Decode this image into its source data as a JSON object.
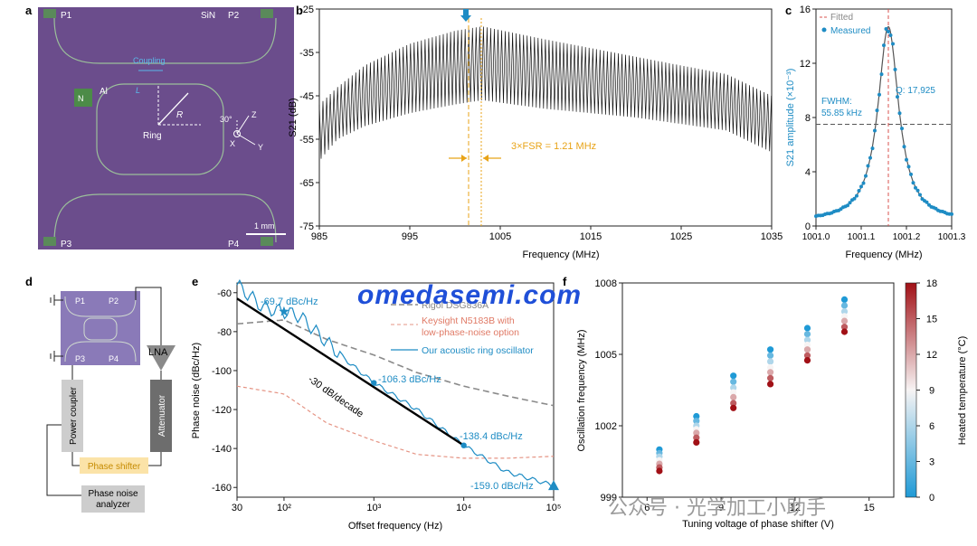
{
  "colors": {
    "purple_chip": "#6b4d8c",
    "ring_line": "#9bbf9a",
    "blue": "#1e8cc4",
    "orange": "#e8a317",
    "red": "#d9534f",
    "gray": "#8a8a8a"
  },
  "panel_labels": {
    "a": "a",
    "b": "b",
    "c": "c",
    "d": "d",
    "e": "e",
    "f": "f"
  },
  "panel_a": {
    "ports": [
      "P1",
      "P2",
      "P3",
      "P4"
    ],
    "material": "SiN",
    "coupling": "Coupling",
    "L": "L",
    "R": "R",
    "ring": "Ring",
    "al": "Al",
    "N": "N",
    "angle": "30°",
    "axes": {
      "z": "Z",
      "x": "X",
      "y": "Y"
    },
    "scale_bar": "1 mm"
  },
  "chart_data": [
    {
      "panel": "b",
      "type": "line",
      "xlabel": "Frequency (MHz)",
      "ylabel": "S21 (dB)",
      "xlim": [
        985,
        1035
      ],
      "ylim": [
        -75,
        -25
      ],
      "xticks": [
        985,
        995,
        1005,
        1015,
        1025,
        1035
      ],
      "yticks": [
        -25,
        -35,
        -45,
        -55,
        -65,
        -75
      ],
      "fsr_mhz": 0.403,
      "envelope": {
        "x": [
          985,
          987,
          990,
          995,
          1000,
          1003,
          1010,
          1020,
          1030,
          1035
        ],
        "top": [
          -47,
          -43,
          -38,
          -33,
          -30,
          -29,
          -32,
          -36,
          -40,
          -45
        ],
        "bottom": [
          -60,
          -55,
          -52,
          -49,
          -47,
          -46,
          -48,
          -50,
          -53,
          -58
        ]
      },
      "annotations": {
        "fsr_text": "3×FSR = 1.21 MHz",
        "marker_freq": 1001.2,
        "dashed_lines": [
          1001.5,
          1002.9
        ]
      }
    },
    {
      "panel": "c",
      "type": "scatter",
      "xlabel": "Frequency (MHz)",
      "ylabel": "S21 amplitude (×10⁻³)",
      "xlim": [
        1001.0,
        1001.3
      ],
      "ylim": [
        0,
        16
      ],
      "xticks": [
        1001.0,
        1001.1,
        1001.2,
        1001.3
      ],
      "yticks": [
        0,
        4,
        8,
        12,
        16
      ],
      "legend": [
        "Fitted",
        "Measured"
      ],
      "lorentz": {
        "center": 1001.16,
        "peak": 14.7,
        "fwhm": 0.05585,
        "offset": 0.3
      },
      "annotations": {
        "q": "Q: 17,925",
        "fwhm": "FWHM:",
        "fwhm_value": "55.85 kHz",
        "half_max": 7.5
      }
    },
    {
      "panel": "e",
      "type": "line",
      "xlabel": "Offset frequency (Hz)",
      "ylabel": "Phase noise (dBc/Hz)",
      "xlim": [
        30,
        100000
      ],
      "ylim": [
        -165,
        -55
      ],
      "xscale": "log",
      "xtick_labels": [
        "30",
        "10²",
        "10³",
        "10⁴",
        "10⁵"
      ],
      "xticks": [
        30,
        100,
        1000,
        10000,
        100000
      ],
      "yticks": [
        -60,
        -80,
        -100,
        -120,
        -140,
        -160
      ],
      "series": [
        {
          "name": "Rigol DSG836A",
          "x": [
            30,
            100,
            300,
            1000,
            3000,
            10000,
            30000,
            100000
          ],
          "y": [
            -76,
            -74,
            -84,
            -92,
            -101,
            -108,
            -113,
            -118
          ]
        },
        {
          "name": "Keysight N5183B with low-phase-noise option",
          "x": [
            30,
            100,
            300,
            1000,
            3000,
            10000,
            30000,
            100000
          ],
          "y": [
            -108,
            -112,
            -127,
            -136,
            -143,
            -145,
            -145,
            -144
          ]
        },
        {
          "name": "Our acoustic ring oscillator",
          "x": [
            30,
            60,
            100,
            150,
            250,
            500,
            1000,
            3000,
            10000,
            30000,
            100000
          ],
          "y": [
            -56,
            -68,
            -69.7,
            -72,
            -82,
            -95,
            -106.3,
            -120,
            -138.4,
            -152,
            -159
          ]
        }
      ],
      "slope_line": {
        "label": "-30 dB/decade",
        "x": [
          30,
          10000
        ],
        "y": [
          -63,
          -138.4
        ]
      },
      "annotations": [
        "-69.7 dBc/Hz",
        "-106.3 dBc/Hz",
        "-138.4 dBc/Hz",
        "-159.0 dBc/Hz"
      ]
    },
    {
      "panel": "f",
      "type": "scatter",
      "xlabel": "Tuning voltage of phase shifter (V)",
      "ylabel": "Oscillation frequency (MHz)",
      "xlim": [
        5,
        16
      ],
      "ylim": [
        999,
        1008
      ],
      "xticks": [
        6,
        9,
        12,
        15
      ],
      "yticks": [
        999,
        1002,
        1005,
        1008
      ],
      "colorbar": {
        "label": "Heated temperature (°C)",
        "ticks": [
          0,
          3,
          6,
          9,
          12,
          15,
          18
        ],
        "range": [
          0,
          18
        ]
      },
      "voltages": [
        6.5,
        8,
        9.5,
        11,
        12.5,
        14
      ],
      "temperatures": [
        0,
        3,
        6,
        9,
        12,
        15,
        18
      ],
      "frequencies": [
        [
          1001.0,
          1000.85,
          1000.7,
          1000.55,
          1000.4,
          1000.25,
          1000.1
        ],
        [
          1002.4,
          1002.2,
          1002.0,
          1001.85,
          1001.7,
          1001.5,
          1001.3
        ],
        [
          1004.1,
          1003.85,
          1003.6,
          1003.4,
          1003.2,
          1002.95,
          1002.75
        ],
        [
          1005.2,
          1004.95,
          1004.7,
          1004.45,
          1004.25,
          1004.0,
          1003.75
        ],
        [
          1006.1,
          1005.85,
          1005.6,
          1005.4,
          1005.2,
          1004.95,
          1004.75
        ],
        [
          1007.3,
          1007.05,
          1006.8,
          1006.6,
          1006.4,
          1006.15,
          1005.95
        ]
      ]
    }
  ],
  "panel_d": {
    "ports": [
      "P1",
      "P2",
      "P3",
      "P4"
    ],
    "power_coupler": "Power coupler",
    "attenuator": "Attenuator",
    "lna": "LNA",
    "phase_shifter": "Phase shifter",
    "analyzer_line1": "Phase noise",
    "analyzer_line2": "analyzer"
  },
  "watermark": {
    "site": "omedasemi.com",
    "account": "公众号 · 光学加工小助手"
  }
}
